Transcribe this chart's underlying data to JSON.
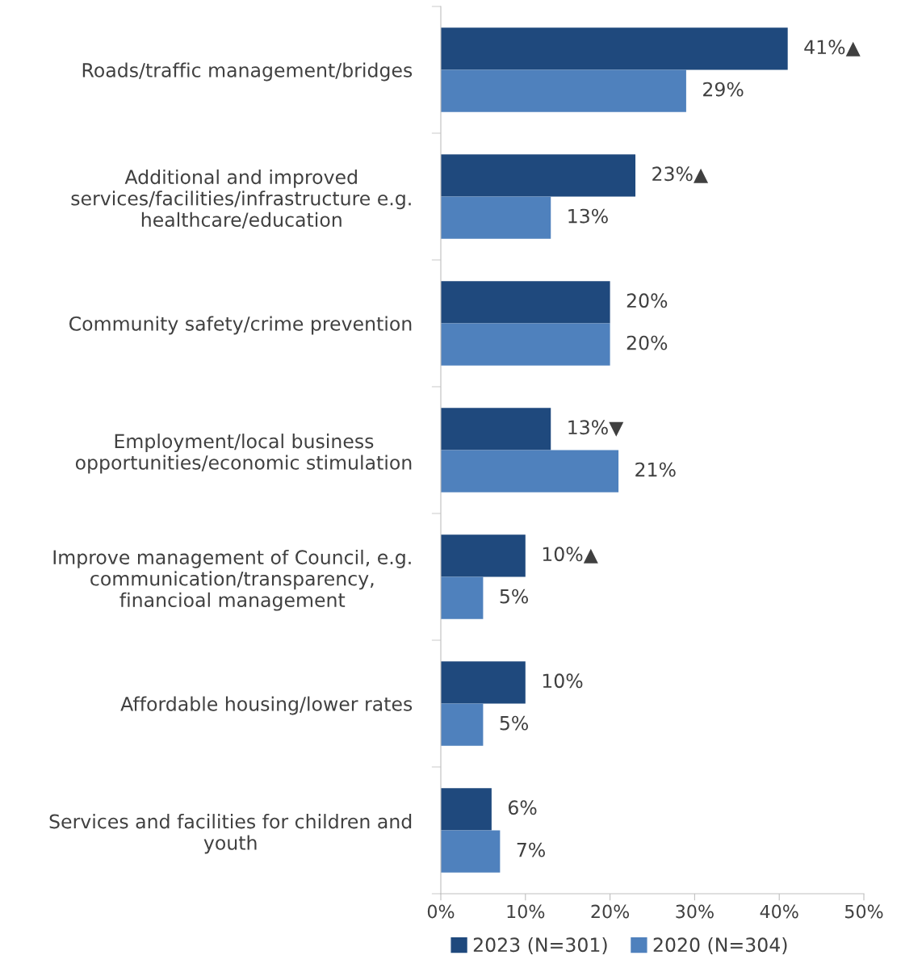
{
  "chart_data": {
    "type": "bar",
    "orientation": "horizontal",
    "categories": [
      "Roads/traffic management/bridges",
      "Additional and improved\nservices/facilities/infrastructure e.g.\nhealthcare/education",
      "Community safety/crime prevention",
      "Employment/local business\nopportunities/economic stimulation",
      "Improve management of Council, e.g.\ncommunication/transparency,\nfinancioal management",
      "Affordable housing/lower rates",
      "Services and facilities for children and\nyouth"
    ],
    "series": [
      {
        "name": "2023 (N=301)",
        "color": "#1f497d",
        "values": [
          41,
          23,
          20,
          13,
          10,
          10,
          6
        ],
        "value_labels": [
          "41%▲",
          "23%▲",
          "20%",
          "13%▼",
          "10%▲",
          "10%",
          "6%"
        ]
      },
      {
        "name": "2020 (N=304)",
        "color": "#4f81bd",
        "values": [
          29,
          13,
          20,
          21,
          5,
          5,
          7
        ],
        "value_labels": [
          "29%",
          "13%",
          "20%",
          "21%",
          "5%",
          "5%",
          "7%"
        ]
      }
    ],
    "xlim": [
      0,
      50
    ],
    "xticks": [
      {
        "value": 0,
        "label": "0%"
      },
      {
        "value": 10,
        "label": "10%"
      },
      {
        "value": 20,
        "label": "20%"
      },
      {
        "value": 30,
        "label": "30%"
      },
      {
        "value": 40,
        "label": "40%"
      },
      {
        "value": 50,
        "label": "50%"
      }
    ],
    "grid": false,
    "legend": "bottom"
  }
}
